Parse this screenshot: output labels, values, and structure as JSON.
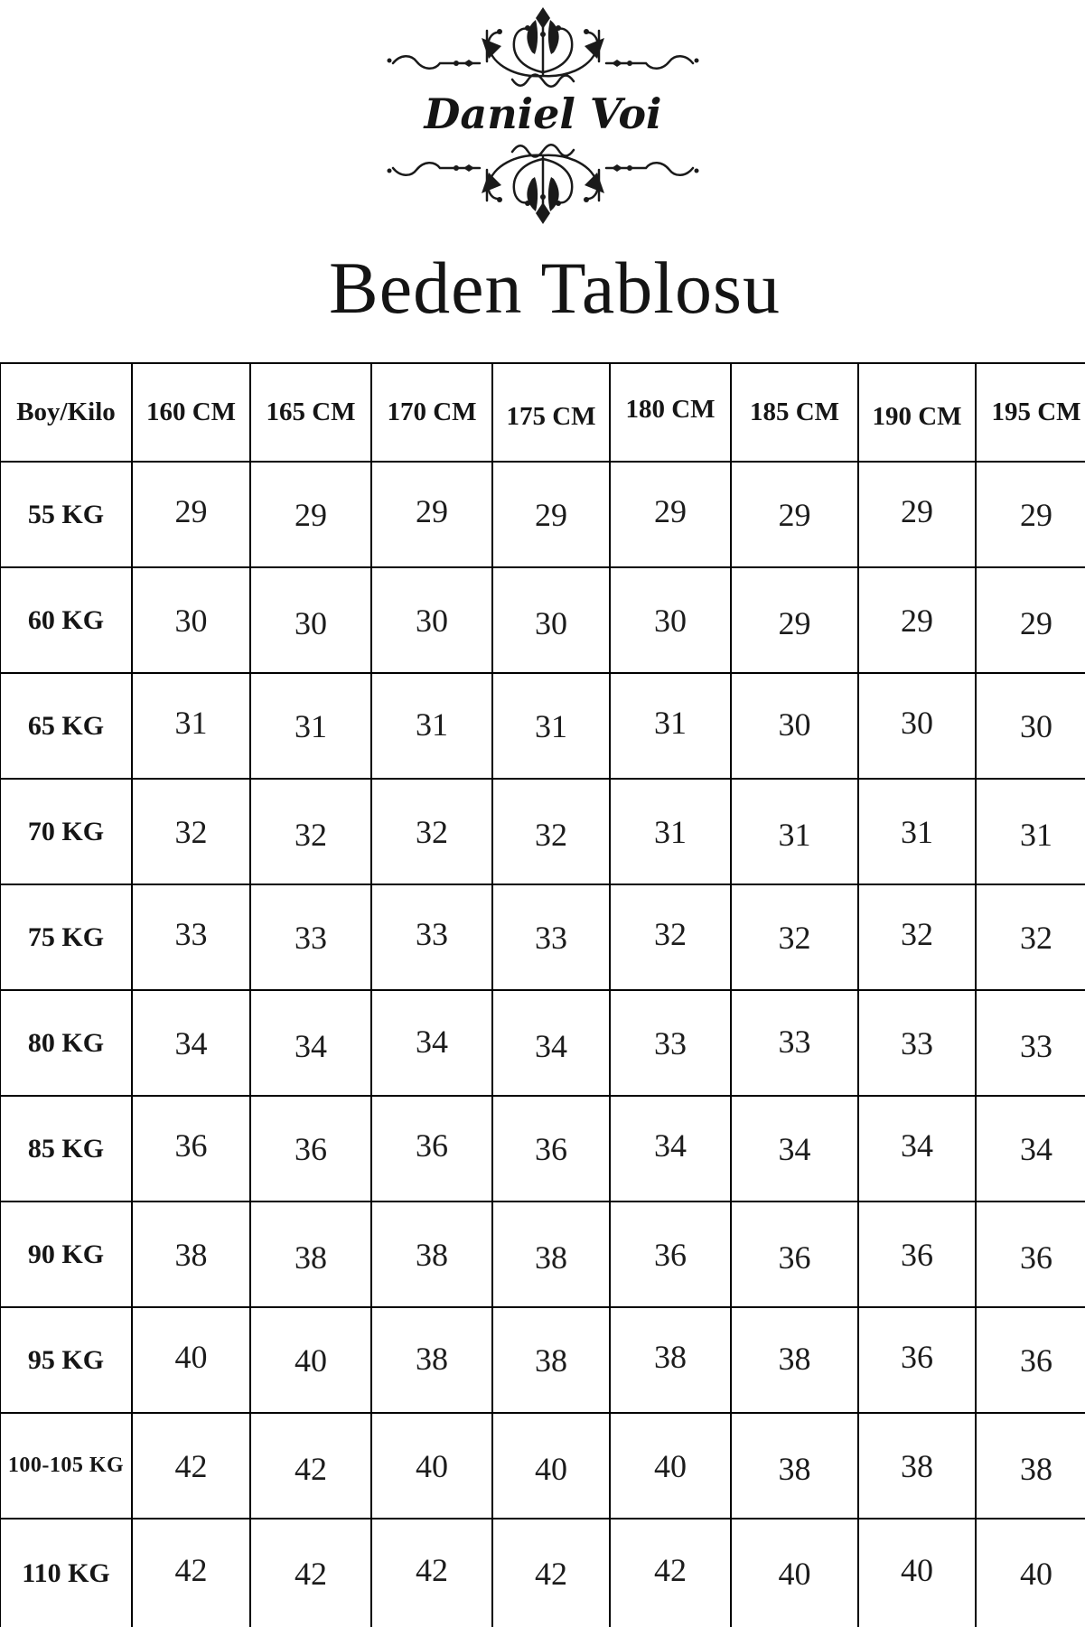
{
  "brand": {
    "name": "Daniel Voi"
  },
  "title": "Beden Tablosu",
  "table": {
    "corner_label": "Boy/Kilo",
    "column_headers": [
      "160 CM",
      "165 CM",
      "170 CM",
      "175 CM",
      "180 CM",
      "185 CM",
      "190 CM",
      "195 CM"
    ],
    "rows": [
      {
        "label": "55 KG",
        "values": [
          29,
          29,
          29,
          29,
          29,
          29,
          29,
          29
        ]
      },
      {
        "label": "60 KG",
        "values": [
          30,
          30,
          30,
          30,
          30,
          29,
          29,
          29
        ]
      },
      {
        "label": "65 KG",
        "values": [
          31,
          31,
          31,
          31,
          31,
          30,
          30,
          30
        ]
      },
      {
        "label": "70 KG",
        "values": [
          32,
          32,
          32,
          32,
          31,
          31,
          31,
          31
        ]
      },
      {
        "label": "75 KG",
        "values": [
          33,
          33,
          33,
          33,
          32,
          32,
          32,
          32
        ]
      },
      {
        "label": "80 KG",
        "values": [
          34,
          34,
          34,
          34,
          33,
          33,
          33,
          33
        ]
      },
      {
        "label": "85 KG",
        "values": [
          36,
          36,
          36,
          36,
          34,
          34,
          34,
          34
        ]
      },
      {
        "label": "90 KG",
        "values": [
          38,
          38,
          38,
          38,
          36,
          36,
          36,
          36
        ]
      },
      {
        "label": "95 KG",
        "values": [
          40,
          40,
          38,
          38,
          38,
          38,
          36,
          36
        ]
      },
      {
        "label": "100-105 KG",
        "values": [
          42,
          42,
          40,
          40,
          40,
          38,
          38,
          38
        ]
      },
      {
        "label": "110 KG",
        "values": [
          42,
          42,
          42,
          42,
          42,
          40,
          40,
          40
        ]
      }
    ]
  },
  "colors": {
    "background": "#ffffff",
    "text": "#111111",
    "border": "#000000"
  }
}
